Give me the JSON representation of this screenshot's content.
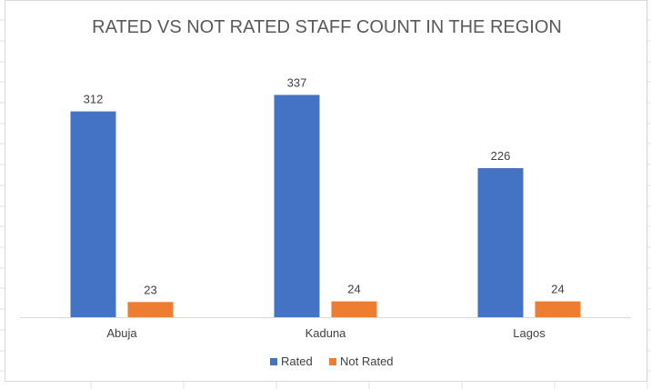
{
  "chart_data": {
    "type": "bar",
    "title": "RATED VS NOT RATED STAFF COUNT IN THE REGION",
    "categories": [
      "Abuja",
      "Kaduna",
      "Lagos"
    ],
    "series": [
      {
        "name": "Rated",
        "values": [
          312,
          337,
          226
        ],
        "color": "#4472c4"
      },
      {
        "name": "Not Rated",
        "values": [
          23,
          24,
          24
        ],
        "color": "#ed7d31"
      }
    ],
    "xlabel": "",
    "ylabel": "",
    "ylim": [
      0,
      350
    ],
    "grid": false,
    "legend": "bottom",
    "data_labels": true
  }
}
